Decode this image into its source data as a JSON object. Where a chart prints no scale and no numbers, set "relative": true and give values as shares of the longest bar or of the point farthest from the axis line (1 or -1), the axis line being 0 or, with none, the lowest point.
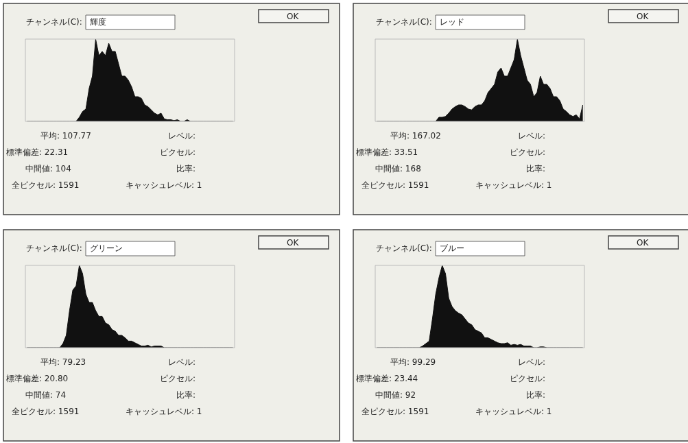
{
  "chart_data": [
    {
      "type": "area",
      "relative": true,
      "color": "#111111",
      "categories": [
        null,
        null,
        null,
        null,
        null,
        null,
        null,
        null,
        null,
        null,
        null,
        null,
        null,
        null,
        null,
        null,
        null,
        null,
        null,
        null,
        null,
        null,
        null,
        null,
        null,
        null,
        null,
        null,
        null,
        null,
        null,
        null,
        null,
        null,
        null,
        null,
        null,
        null,
        null,
        null,
        null,
        null,
        null,
        null,
        null,
        null,
        null,
        null,
        null,
        null,
        null,
        null,
        null,
        null,
        null,
        null,
        null,
        null,
        null,
        null,
        null,
        null,
        null,
        null
      ],
      "values": [
        0,
        0,
        0,
        0,
        0,
        0,
        0,
        0,
        0,
        0,
        0,
        0,
        0,
        0,
        0,
        0,
        0.05,
        0.12,
        0.15,
        0.4,
        0.55,
        1.0,
        0.8,
        0.85,
        0.8,
        0.95,
        0.85,
        0.85,
        0.7,
        0.55,
        0.55,
        0.5,
        0.42,
        0.3,
        0.3,
        0.28,
        0.2,
        0.18,
        0.14,
        0.1,
        0.08,
        0.1,
        0.03,
        0.02,
        0.02,
        0.01,
        0.02,
        0,
        0,
        0.02,
        0,
        0,
        0,
        0,
        0,
        0,
        0,
        0,
        0,
        0,
        0,
        0,
        0,
        0
      ],
      "annotations": [
        "チャンネル(C):",
        "輝度",
        "OK",
        "平均: 107.77",
        "レベル:",
        "標準偏差: 22.31",
        "ピクセル:",
        "中間値: 104",
        "比率:",
        "全ピクセル: 1591",
        "キャッシュレベル: 1"
      ]
    },
    {
      "type": "area",
      "relative": true,
      "color": "#111111",
      "categories": [
        null,
        null,
        null,
        null,
        null,
        null,
        null,
        null,
        null,
        null,
        null,
        null,
        null,
        null,
        null,
        null,
        null,
        null,
        null,
        null,
        null,
        null,
        null,
        null,
        null,
        null,
        null,
        null,
        null,
        null,
        null,
        null,
        null,
        null,
        null,
        null,
        null,
        null,
        null,
        null,
        null,
        null,
        null,
        null,
        null,
        null,
        null,
        null,
        null,
        null,
        null,
        null,
        null,
        null,
        null,
        null,
        null,
        null,
        null,
        null,
        null,
        null,
        null,
        null
      ],
      "values": [
        0,
        0,
        0,
        0,
        0,
        0,
        0,
        0,
        0,
        0,
        0,
        0,
        0,
        0,
        0,
        0,
        0,
        0,
        0,
        0.05,
        0.05,
        0.06,
        0.1,
        0.15,
        0.18,
        0.2,
        0.2,
        0.18,
        0.15,
        0.14,
        0.18,
        0.2,
        0.2,
        0.25,
        0.35,
        0.4,
        0.45,
        0.6,
        0.65,
        0.55,
        0.55,
        0.65,
        0.75,
        1.0,
        0.8,
        0.65,
        0.5,
        0.45,
        0.3,
        0.35,
        0.55,
        0.45,
        0.45,
        0.4,
        0.3,
        0.3,
        0.25,
        0.15,
        0.12,
        0.08,
        0.06,
        0.08,
        0.03,
        0.2
      ],
      "annotations": [
        "チャンネル(C):",
        "レッド",
        "OK",
        "平均: 167.02",
        "レベル:",
        "標準偏差: 33.51",
        "ピクセル:",
        "中間値: 168",
        "比率:",
        "全ピクセル: 1591",
        "キャッシュレベル: 1"
      ]
    },
    {
      "type": "area",
      "relative": true,
      "color": "#111111",
      "categories": [
        null,
        null,
        null,
        null,
        null,
        null,
        null,
        null,
        null,
        null,
        null,
        null,
        null,
        null,
        null,
        null,
        null,
        null,
        null,
        null,
        null,
        null,
        null,
        null,
        null,
        null,
        null,
        null,
        null,
        null,
        null,
        null,
        null,
        null,
        null,
        null,
        null,
        null,
        null,
        null,
        null,
        null,
        null,
        null,
        null,
        null,
        null,
        null,
        null,
        null,
        null,
        null,
        null,
        null,
        null,
        null,
        null,
        null,
        null,
        null,
        null,
        null,
        null,
        null
      ],
      "values": [
        0,
        0,
        0,
        0,
        0,
        0,
        0,
        0,
        0,
        0,
        0,
        0.05,
        0.15,
        0.45,
        0.7,
        0.75,
        1.0,
        0.9,
        0.65,
        0.55,
        0.55,
        0.45,
        0.38,
        0.38,
        0.3,
        0.28,
        0.22,
        0.2,
        0.15,
        0.15,
        0.12,
        0.08,
        0.08,
        0.06,
        0.04,
        0.02,
        0.02,
        0.03,
        0.01,
        0.02,
        0.02,
        0.02,
        0,
        0,
        0,
        0,
        0,
        0,
        0,
        0,
        0,
        0,
        0,
        0,
        0,
        0,
        0,
        0,
        0,
        0,
        0,
        0,
        0,
        0
      ],
      "annotations": [
        "チャンネル(C):",
        "グリーン",
        "OK",
        "平均: 79.23",
        "レベル:",
        "標準偏差: 20.80",
        "ピクセル:",
        "中間値: 74",
        "比率:",
        "全ピクセル: 1591",
        "キャッシュレベル: 1"
      ]
    },
    {
      "type": "area",
      "relative": true,
      "color": "#111111",
      "categories": [
        null,
        null,
        null,
        null,
        null,
        null,
        null,
        null,
        null,
        null,
        null,
        null,
        null,
        null,
        null,
        null,
        null,
        null,
        null,
        null,
        null,
        null,
        null,
        null,
        null,
        null,
        null,
        null,
        null,
        null,
        null,
        null,
        null,
        null,
        null,
        null,
        null,
        null,
        null,
        null,
        null,
        null,
        null,
        null,
        null,
        null,
        null,
        null,
        null,
        null,
        null,
        null,
        null,
        null,
        null,
        null,
        null,
        null,
        null,
        null,
        null,
        null,
        null,
        null
      ],
      "values": [
        0,
        0,
        0,
        0,
        0,
        0,
        0,
        0,
        0,
        0,
        0,
        0,
        0,
        0,
        0.02,
        0.05,
        0.08,
        0.35,
        0.65,
        0.85,
        1.0,
        0.9,
        0.6,
        0.5,
        0.45,
        0.42,
        0.4,
        0.35,
        0.3,
        0.28,
        0.22,
        0.2,
        0.18,
        0.12,
        0.12,
        0.1,
        0.08,
        0.06,
        0.05,
        0.05,
        0.06,
        0.03,
        0.04,
        0.03,
        0.04,
        0.02,
        0.02,
        0.02,
        0,
        0,
        0.01,
        0.01,
        0,
        0,
        0,
        0,
        0,
        0,
        0,
        0,
        0,
        0,
        0,
        0
      ],
      "annotations": [
        "チャンネル(C):",
        "ブルー",
        "OK",
        "平均: 99.29",
        "レベル:",
        "標準偏差: 23.44",
        "ピクセル:",
        "中間値: 92",
        "比率:",
        "全ピクセル: 1591",
        "キャッシュレベル: 1"
      ]
    }
  ]
}
